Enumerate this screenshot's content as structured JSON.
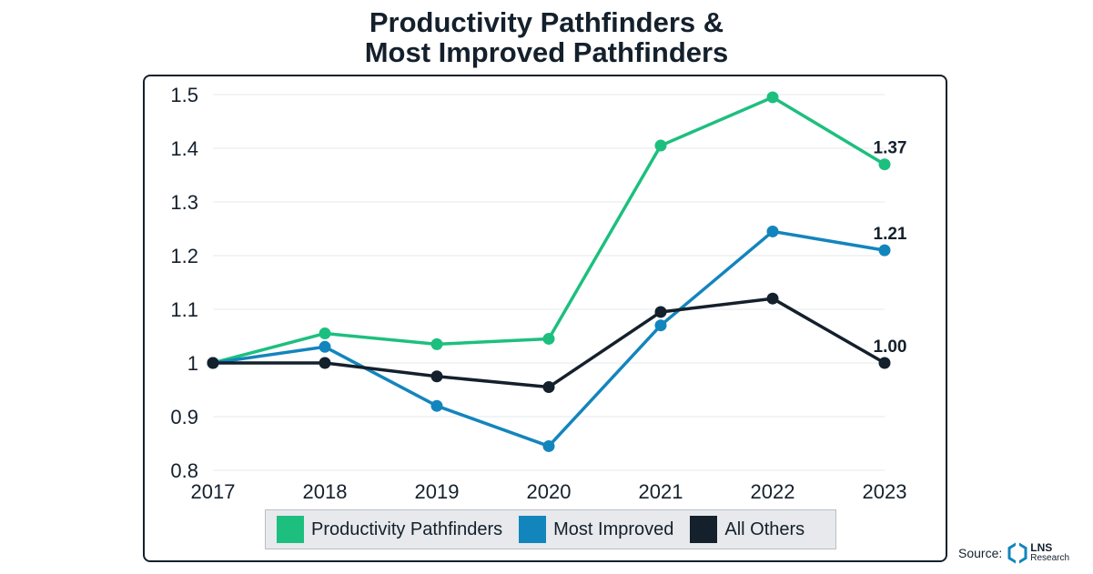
{
  "title_lines": [
    "Productivity Pathfinders &",
    "Most Improved Pathfinders"
  ],
  "source": {
    "label": "Source:",
    "logo_text": "LNS",
    "logo_subtext": "Research",
    "logo_icon": "lns-research-logo-icon"
  },
  "chart_data": {
    "type": "line",
    "title": "Productivity Pathfinders & Most Improved Pathfinders",
    "xlabel": "",
    "ylabel": "",
    "x": [
      "2017",
      "2018",
      "2019",
      "2020",
      "2021",
      "2022",
      "2023"
    ],
    "ylim": [
      0.8,
      1.5
    ],
    "yticks": [
      1.5,
      1.4,
      1.3,
      1.2,
      1.1,
      1,
      0.9,
      0.8
    ],
    "ytick_labels": [
      "1.5",
      "1.4",
      "1.3",
      "1.2",
      "1.1",
      "1",
      "0.9",
      "0.8"
    ],
    "grid": true,
    "legend_position": "bottom",
    "series": [
      {
        "name": "Productivity Pathfinders",
        "color": "#1dbf7f",
        "values": [
          1.0,
          1.055,
          1.035,
          1.045,
          1.405,
          1.495,
          1.37
        ],
        "end_label": "1.37"
      },
      {
        "name": "Most Improved",
        "color": "#1385bd",
        "values": [
          1.0,
          1.03,
          0.92,
          0.845,
          1.07,
          1.245,
          1.21
        ],
        "end_label": "1.21"
      },
      {
        "name": "All Others",
        "color": "#14202c",
        "values": [
          1.0,
          1.0,
          0.975,
          0.955,
          1.095,
          1.12,
          1.0
        ],
        "end_label": "1.00"
      }
    ]
  }
}
